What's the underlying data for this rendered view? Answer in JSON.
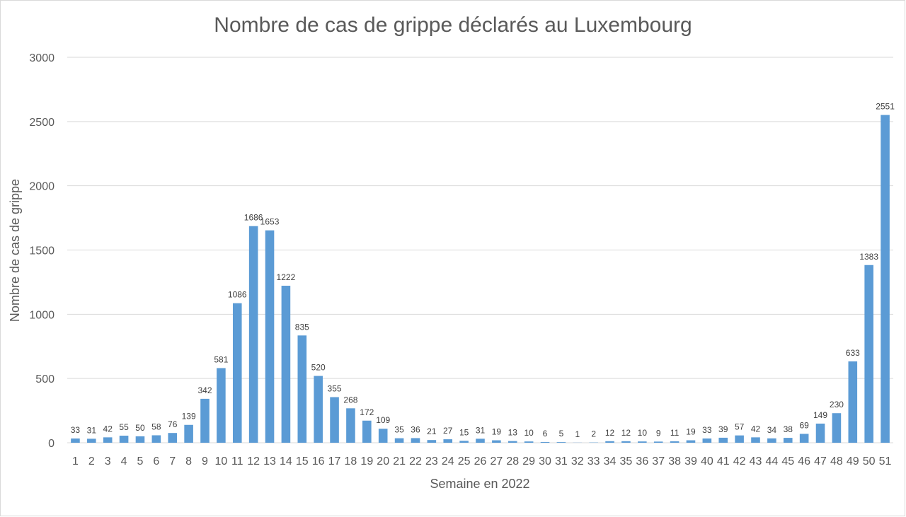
{
  "chart_data": {
    "type": "bar",
    "title": "Nombre de cas de grippe déclarés au Luxembourg",
    "xlabel": "Semaine en 2022",
    "ylabel": "Nombre de cas de grippe",
    "ylim": [
      0,
      3000
    ],
    "yticks": [
      0,
      500,
      1000,
      1500,
      2000,
      2500,
      3000
    ],
    "grid": true,
    "legend": "none",
    "bar_color": "#5b9bd5",
    "categories": [
      "1",
      "2",
      "3",
      "4",
      "5",
      "6",
      "7",
      "8",
      "9",
      "10",
      "11",
      "12",
      "13",
      "14",
      "15",
      "16",
      "17",
      "18",
      "19",
      "20",
      "21",
      "22",
      "23",
      "24",
      "25",
      "26",
      "27",
      "28",
      "29",
      "30",
      "31",
      "32",
      "33",
      "34",
      "35",
      "36",
      "37",
      "38",
      "39",
      "40",
      "41",
      "42",
      "43",
      "44",
      "45",
      "46",
      "47",
      "48",
      "49",
      "50",
      "51"
    ],
    "values": [
      33,
      31,
      42,
      55,
      50,
      58,
      76,
      139,
      342,
      581,
      1086,
      1686,
      1653,
      1222,
      835,
      520,
      355,
      268,
      172,
      109,
      35,
      36,
      21,
      27,
      15,
      31,
      19,
      13,
      10,
      6,
      5,
      1,
      2,
      12,
      12,
      10,
      9,
      11,
      19,
      33,
      39,
      57,
      42,
      34,
      38,
      69,
      149,
      230,
      633,
      1383,
      2551
    ]
  }
}
